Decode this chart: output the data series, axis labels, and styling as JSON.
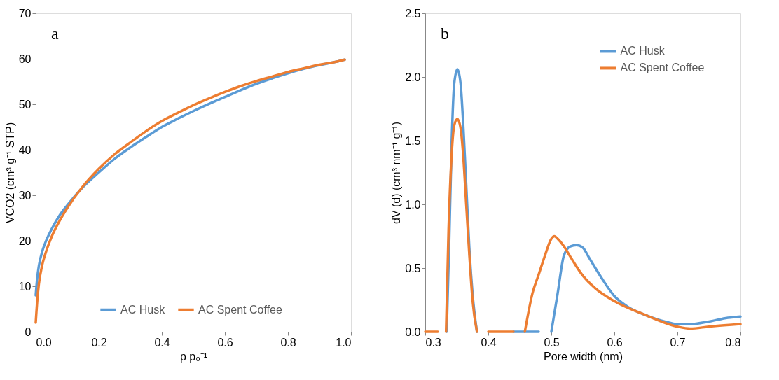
{
  "chart_data": [
    {
      "type": "line",
      "xlabel": "p p₀⁻¹",
      "ylabel": "VCO2 (cm³ g⁻¹ STP)",
      "annotations": [
        "a"
      ],
      "xlim": [
        0,
        1
      ],
      "xticks": [
        {
          "value": 0,
          "label": "0.0"
        },
        0.2,
        0.4,
        0.6,
        0.8,
        {
          "value": 1,
          "label": "1.0"
        }
      ],
      "ylim": [
        0,
        70
      ],
      "yticks": [
        0,
        10,
        20,
        30,
        40,
        50,
        60,
        70
      ],
      "grid": false,
      "legend": "bottom",
      "marker": "none",
      "line_style": "solid",
      "series": [
        {
          "name": "AC Husk",
          "color": "#5b9bd5",
          "x": [
            0,
            0.005,
            0.01,
            0.02,
            0.03,
            0.05,
            0.075,
            0.1,
            0.15,
            0.2,
            0.25,
            0.3,
            0.35,
            0.4,
            0.45,
            0.5,
            0.55,
            0.6,
            0.65,
            0.7,
            0.75,
            0.8,
            0.85,
            0.9,
            0.95,
            0.98
          ],
          "values": [
            8,
            12,
            14.5,
            17.5,
            19.5,
            22.5,
            25.5,
            27.8,
            31.8,
            35,
            38,
            40.5,
            42.8,
            45,
            46.8,
            48.5,
            50.1,
            51.6,
            53.1,
            54.5,
            55.7,
            56.8,
            57.8,
            58.6,
            59.3,
            59.8
          ]
        },
        {
          "name": "AC Spent Coffee",
          "color": "#ed7d31",
          "x": [
            0,
            0.005,
            0.01,
            0.02,
            0.03,
            0.05,
            0.075,
            0.1,
            0.15,
            0.2,
            0.25,
            0.3,
            0.35,
            0.4,
            0.45,
            0.5,
            0.55,
            0.6,
            0.65,
            0.7,
            0.75,
            0.8,
            0.85,
            0.9,
            0.95,
            0.98
          ],
          "values": [
            2,
            7,
            10.5,
            14.5,
            17,
            20.8,
            24.3,
            27.2,
            32,
            35.8,
            39,
            41.6,
            44.1,
            46.3,
            48.1,
            49.8,
            51.3,
            52.7,
            54,
            55.1,
            56.1,
            57.1,
            57.9,
            58.7,
            59.3,
            59.8
          ]
        }
      ]
    },
    {
      "type": "line",
      "xlabel": "Pore width (nm)",
      "ylabel": "dV (d) (cm³ nm⁻¹ g⁻¹)",
      "annotations": [
        "b"
      ],
      "xlim": [
        0.3,
        0.8
      ],
      "xticks": [
        0.3,
        0.4,
        0.5,
        0.6,
        0.7,
        0.8
      ],
      "ylim": [
        0,
        2.5
      ],
      "yticks": [
        {
          "value": 0,
          "label": "0.0"
        },
        0.5,
        {
          "value": 1,
          "label": "1.0"
        },
        1.5,
        {
          "value": 2,
          "label": "2.0"
        },
        2.5
      ],
      "grid": false,
      "legend": "top right",
      "marker": "none",
      "line_style": "solid",
      "series": [
        {
          "name": "AC Husk",
          "color": "#5b9bd5",
          "x": [
            0.334,
            0.338,
            0.342,
            0.346,
            0.351,
            0.356,
            0.36,
            0.365,
            0.37,
            0.375,
            0.382,
            0.39,
            0.44,
            0.48,
            0.49,
            0.5,
            0.51,
            0.52,
            0.53,
            0.54,
            0.55,
            0.56,
            0.58,
            0.6,
            0.62,
            0.65,
            0.68,
            0.7,
            0.72,
            0.75,
            0.78,
            0.8
          ],
          "values": [
            0,
            0.7,
            1.5,
            1.95,
            2.06,
            1.95,
            1.65,
            1.15,
            0.65,
            0.3,
            0,
            null,
            0,
            0,
            null,
            0,
            0.3,
            0.6,
            0.67,
            0.68,
            0.66,
            0.58,
            0.42,
            0.28,
            0.2,
            0.13,
            0.08,
            0.06,
            0.06,
            0.08,
            0.11,
            0.12
          ]
        },
        {
          "name": "AC Spent Coffee",
          "color": "#ed7d31",
          "x": [
            0.3,
            0.32,
            0.326,
            0.333,
            0.337,
            0.342,
            0.346,
            0.351,
            0.356,
            0.36,
            0.365,
            0.37,
            0.375,
            0.382,
            0.39,
            0.4,
            0.44,
            0.45,
            0.458,
            0.47,
            0.48,
            0.49,
            0.5,
            0.505,
            0.51,
            0.52,
            0.53,
            0.55,
            0.57,
            0.6,
            0.65,
            0.7,
            0.72,
            0.75,
            0.8
          ],
          "values": [
            0,
            0,
            null,
            0,
            0.8,
            1.4,
            1.62,
            1.67,
            1.6,
            1.4,
            1.0,
            0.6,
            0.25,
            0,
            null,
            0,
            0,
            null,
            0,
            0.3,
            0.45,
            0.6,
            0.73,
            0.75,
            0.73,
            0.67,
            0.59,
            0.44,
            0.34,
            0.24,
            0.13,
            0.04,
            0.025,
            0.04,
            0.06
          ]
        }
      ]
    }
  ]
}
